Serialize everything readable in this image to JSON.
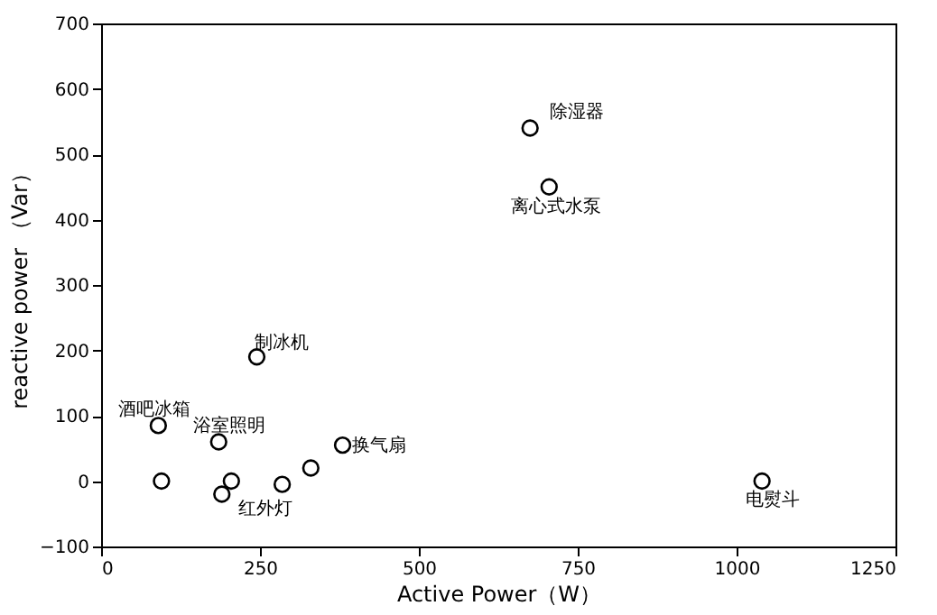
{
  "chart_data": {
    "type": "scatter",
    "xlabel": "Active Power（W）",
    "ylabel": "reactive power （Var）",
    "x": [
      675,
      705,
      1040,
      245,
      90,
      185,
      380,
      330,
      285,
      205,
      190,
      95
    ],
    "values": [
      540,
      450,
      0,
      190,
      85,
      60,
      55,
      20,
      -5,
      0,
      -20,
      0
    ],
    "color": "#000000",
    "marker": "circle",
    "xlim": [
      0,
      1250
    ],
    "xticks": [
      0,
      250,
      500,
      750,
      1000,
      1250
    ],
    "ylim": [
      -100,
      700
    ],
    "yticks": [
      -100,
      0,
      100,
      200,
      300,
      400,
      500,
      600,
      700
    ],
    "grid": false,
    "annotations": [
      {
        "text": "除湿器",
        "x": 675,
        "y": 540
      },
      {
        "text": "离心式水泵",
        "x": 705,
        "y": 450
      },
      {
        "text": "电熨斗",
        "x": 1040,
        "y": 0
      },
      {
        "text": "制冰机",
        "x": 245,
        "y": 190
      },
      {
        "text": "酒吧冰箱",
        "x": 90,
        "y": 85
      },
      {
        "text": "浴室照明",
        "x": 185,
        "y": 60
      },
      {
        "text": "换气扇",
        "x": 380,
        "y": 55
      },
      {
        "text": "红外灯",
        "x": 190,
        "y": -20
      }
    ]
  }
}
